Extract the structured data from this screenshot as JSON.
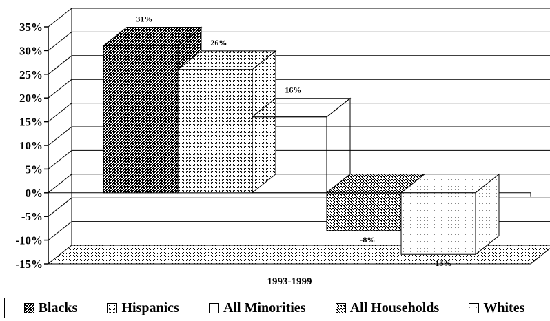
{
  "chart_data": {
    "type": "bar",
    "title": "",
    "xlabel": "",
    "ylabel": "",
    "categories": [
      "1993-1999"
    ],
    "series": [
      {
        "name": "Blacks",
        "values": [
          31
        ],
        "label": "31%",
        "pattern": "dense",
        "color": "#222222"
      },
      {
        "name": "Hispanics",
        "values": [
          26
        ],
        "label": "26%",
        "pattern": "light",
        "color": "#bbbbbb"
      },
      {
        "name": "All Minorities",
        "values": [
          16
        ],
        "label": "16%",
        "pattern": "solid",
        "color": "#000000"
      },
      {
        "name": "All Households",
        "values": [
          -8
        ],
        "label": "-8%",
        "pattern": "medium",
        "color": "#555555"
      },
      {
        "name": "Whites",
        "values": [
          -13
        ],
        "label": "-13%",
        "pattern": "sparse",
        "color": "#f2f2f2"
      }
    ],
    "ylim": [
      -15,
      35
    ],
    "yticks": [
      "-15%",
      "-10%",
      "-5%",
      "0%",
      "5%",
      "10%",
      "15%",
      "20%",
      "25%",
      "30%",
      "35%"
    ],
    "ytick_values": [
      -15,
      -10,
      -5,
      0,
      5,
      10,
      15,
      20,
      25,
      30,
      35
    ],
    "grid": true,
    "three_d": true,
    "legend_position": "bottom"
  }
}
